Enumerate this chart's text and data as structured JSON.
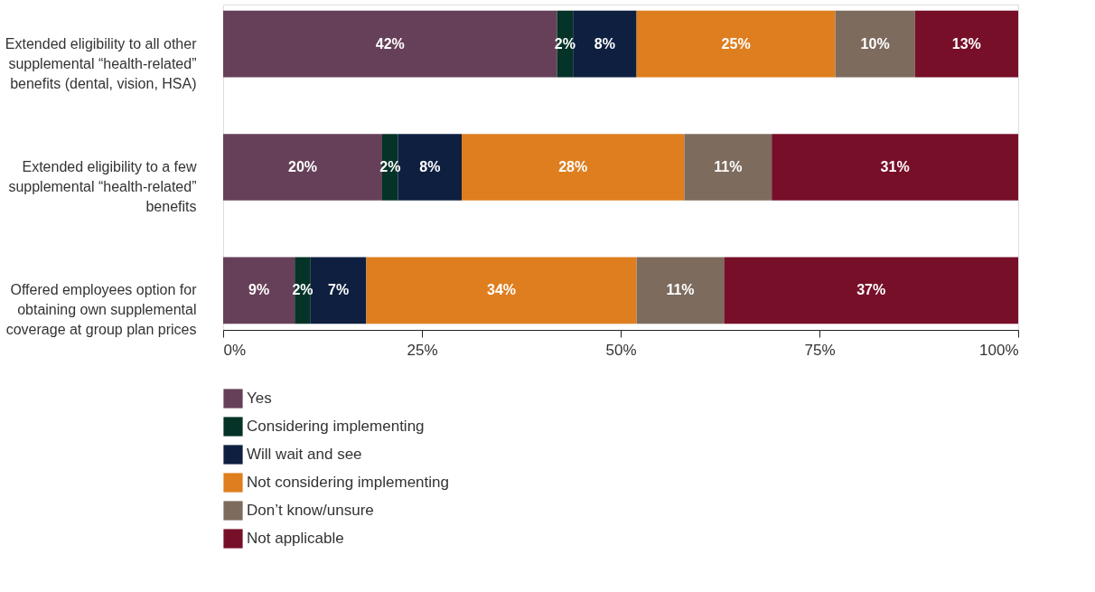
{
  "chart_data": {
    "type": "bar",
    "orientation": "horizontal",
    "stacked": true,
    "grid": false,
    "legend": "bottom left",
    "categories": [
      "Extended eligibility to all other supplemental “health-related” benefits (dental, vision, HSA)",
      "Extended eligibility to a few supplemental “health-related” benefits",
      "Offered employees option for obtaining own supplemental coverage at group plan prices"
    ],
    "series": [
      {
        "name": "Yes",
        "color": "#664059",
        "values": [
          42,
          20,
          9
        ],
        "value_labels": [
          "42%",
          "20%",
          "9%"
        ]
      },
      {
        "name": "Considering implementing",
        "color": "#053327",
        "values": [
          2,
          2,
          2
        ],
        "value_labels": [
          "2%",
          "2%",
          "2%"
        ]
      },
      {
        "name": "Will wait and see",
        "color": "#0e1f40",
        "values": [
          8,
          8,
          7
        ],
        "value_labels": [
          "8%",
          "8%",
          "7%"
        ]
      },
      {
        "name": "Not considering implementing",
        "color": "#de7e1f",
        "values": [
          25,
          28,
          34
        ],
        "value_labels": [
          "25%",
          "28%",
          "34%"
        ]
      },
      {
        "name": "Don’t know/unsure",
        "color": "#7d6b5e",
        "values": [
          10,
          11,
          11
        ],
        "value_labels": [
          "10%",
          "11%",
          "11%"
        ]
      },
      {
        "name": "Not applicable",
        "color": "#770f28",
        "values": [
          13,
          31,
          37
        ],
        "value_labels": [
          "13%",
          "31%",
          "37%"
        ]
      }
    ],
    "xlim": [
      0,
      100
    ],
    "xticks": [
      {
        "value": 0,
        "label": "0%"
      },
      {
        "value": 25,
        "label": "25%"
      },
      {
        "value": 50,
        "label": "50%"
      },
      {
        "value": 75,
        "label": "75%"
      },
      {
        "value": 100,
        "label": "100%"
      }
    ]
  }
}
